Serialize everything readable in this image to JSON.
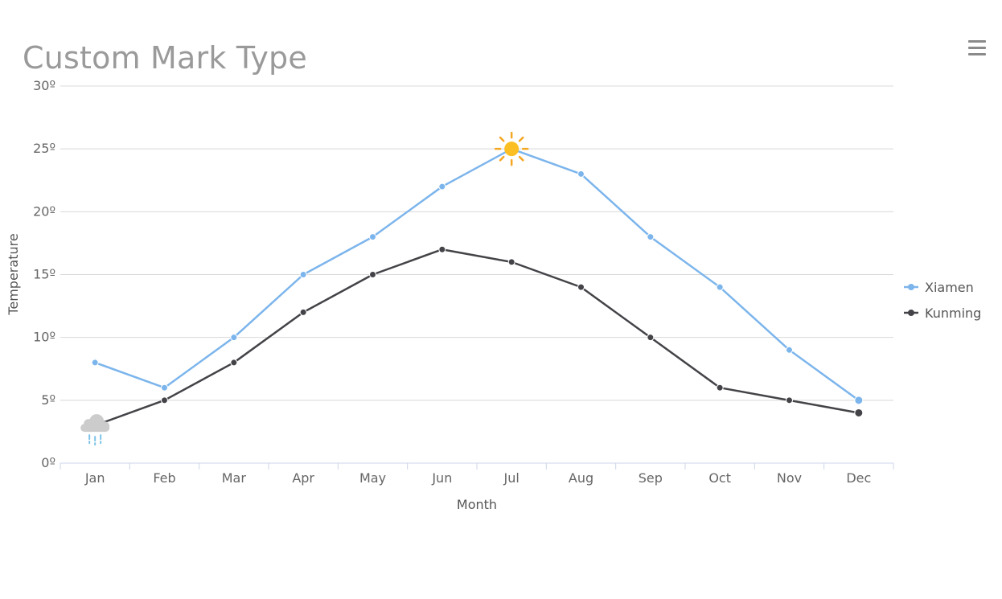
{
  "header": {
    "title": "Custom Mark Type",
    "menu_icon": "hamburger-menu-icon"
  },
  "chart_data": {
    "type": "line",
    "title": "Custom Mark Type",
    "xlabel": "Month",
    "ylabel": "Temperature",
    "categories": [
      "Jan",
      "Feb",
      "Mar",
      "Apr",
      "May",
      "Jun",
      "Jul",
      "Aug",
      "Sep",
      "Oct",
      "Nov",
      "Dec"
    ],
    "ylim": [
      0,
      30
    ],
    "yticks": [
      0,
      5,
      10,
      15,
      20,
      25,
      30
    ],
    "ytick_suffix": "º",
    "grid": true,
    "legend_position": "right",
    "series": [
      {
        "name": "Xiamen",
        "color": "#7cb5ec",
        "values": [
          8,
          6,
          10,
          15,
          18,
          22,
          25,
          23,
          18,
          14,
          9,
          5
        ],
        "special_marker": {
          "index": 6,
          "icon": "sun-icon"
        }
      },
      {
        "name": "Kunming",
        "color": "#434348",
        "values": [
          3,
          5,
          8,
          12,
          15,
          17,
          16,
          14,
          10,
          6,
          5,
          4
        ],
        "special_marker": {
          "index": 0,
          "icon": "rain-cloud-icon"
        }
      }
    ],
    "colors": {
      "grid": "#d8d8d8",
      "axis": "#ccd6eb",
      "sun": "#fbbf24",
      "sun_rays": "#f5a623",
      "cloud": "#cccccc",
      "rain": "#7cc3e8"
    }
  }
}
